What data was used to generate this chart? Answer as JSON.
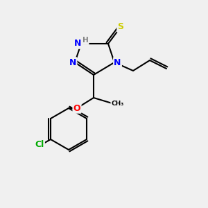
{
  "background_color": "#f0f0f0",
  "atom_colors": {
    "N": "#0000ff",
    "S": "#cccc00",
    "O": "#ff0000",
    "Cl": "#00aa00",
    "C": "#000000",
    "H": "#808080"
  },
  "font_size_atom": 9,
  "font_size_small": 7.5,
  "fig_width": 3.0,
  "fig_height": 3.0,
  "dpi": 100
}
